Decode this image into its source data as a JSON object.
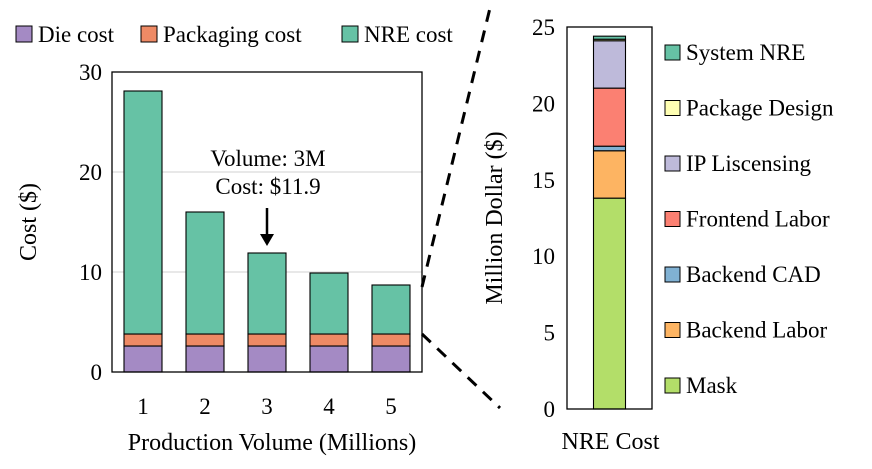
{
  "chart_data": [
    {
      "type": "bar",
      "stacked": true,
      "categories": [
        "1",
        "2",
        "3",
        "4",
        "5"
      ],
      "series": [
        {
          "name": "Die cost",
          "color": "#a48ac4",
          "values": [
            2.6,
            2.6,
            2.6,
            2.6,
            2.6
          ]
        },
        {
          "name": "Packaging cost",
          "color": "#ee8a65",
          "values": [
            1.2,
            1.2,
            1.2,
            1.2,
            1.2
          ]
        },
        {
          "name": "NRE cost",
          "color": "#66c2a5",
          "values": [
            24.3,
            12.2,
            8.1,
            6.1,
            4.9
          ]
        }
      ],
      "xlabel": "Production Volume (Millions)",
      "ylabel": "Cost ($)",
      "ylim": [
        0,
        30
      ],
      "yticks": [
        0,
        10,
        20,
        30
      ],
      "grid": true,
      "legend": "top",
      "annotation": {
        "category": "3",
        "line1": "Volume: 3M",
        "line2": "Cost: $11.9"
      }
    },
    {
      "type": "bar",
      "stacked": true,
      "categories": [
        "NRE Cost"
      ],
      "series": [
        {
          "name": "Mask",
          "color": "#b3de69",
          "values": [
            13.8
          ]
        },
        {
          "name": "Backend Labor",
          "color": "#fdb462",
          "values": [
            3.1
          ]
        },
        {
          "name": "Backend CAD",
          "color": "#80b1d3",
          "values": [
            0.3
          ]
        },
        {
          "name": "Frontend Labor",
          "color": "#fb8072",
          "values": [
            3.8
          ]
        },
        {
          "name": "IP Liscensing",
          "color": "#bebada",
          "values": [
            3.1
          ]
        },
        {
          "name": "Package Design",
          "color": "#ffffb3",
          "values": [
            0.1
          ]
        },
        {
          "name": "System NRE",
          "color": "#66c2a5",
          "values": [
            0.2
          ]
        }
      ],
      "ylabel": "Million Dollar ($)",
      "ylim": [
        0,
        25
      ],
      "yticks": [
        0,
        5,
        10,
        15,
        20,
        25
      ],
      "grid": false,
      "legend": "right"
    }
  ]
}
